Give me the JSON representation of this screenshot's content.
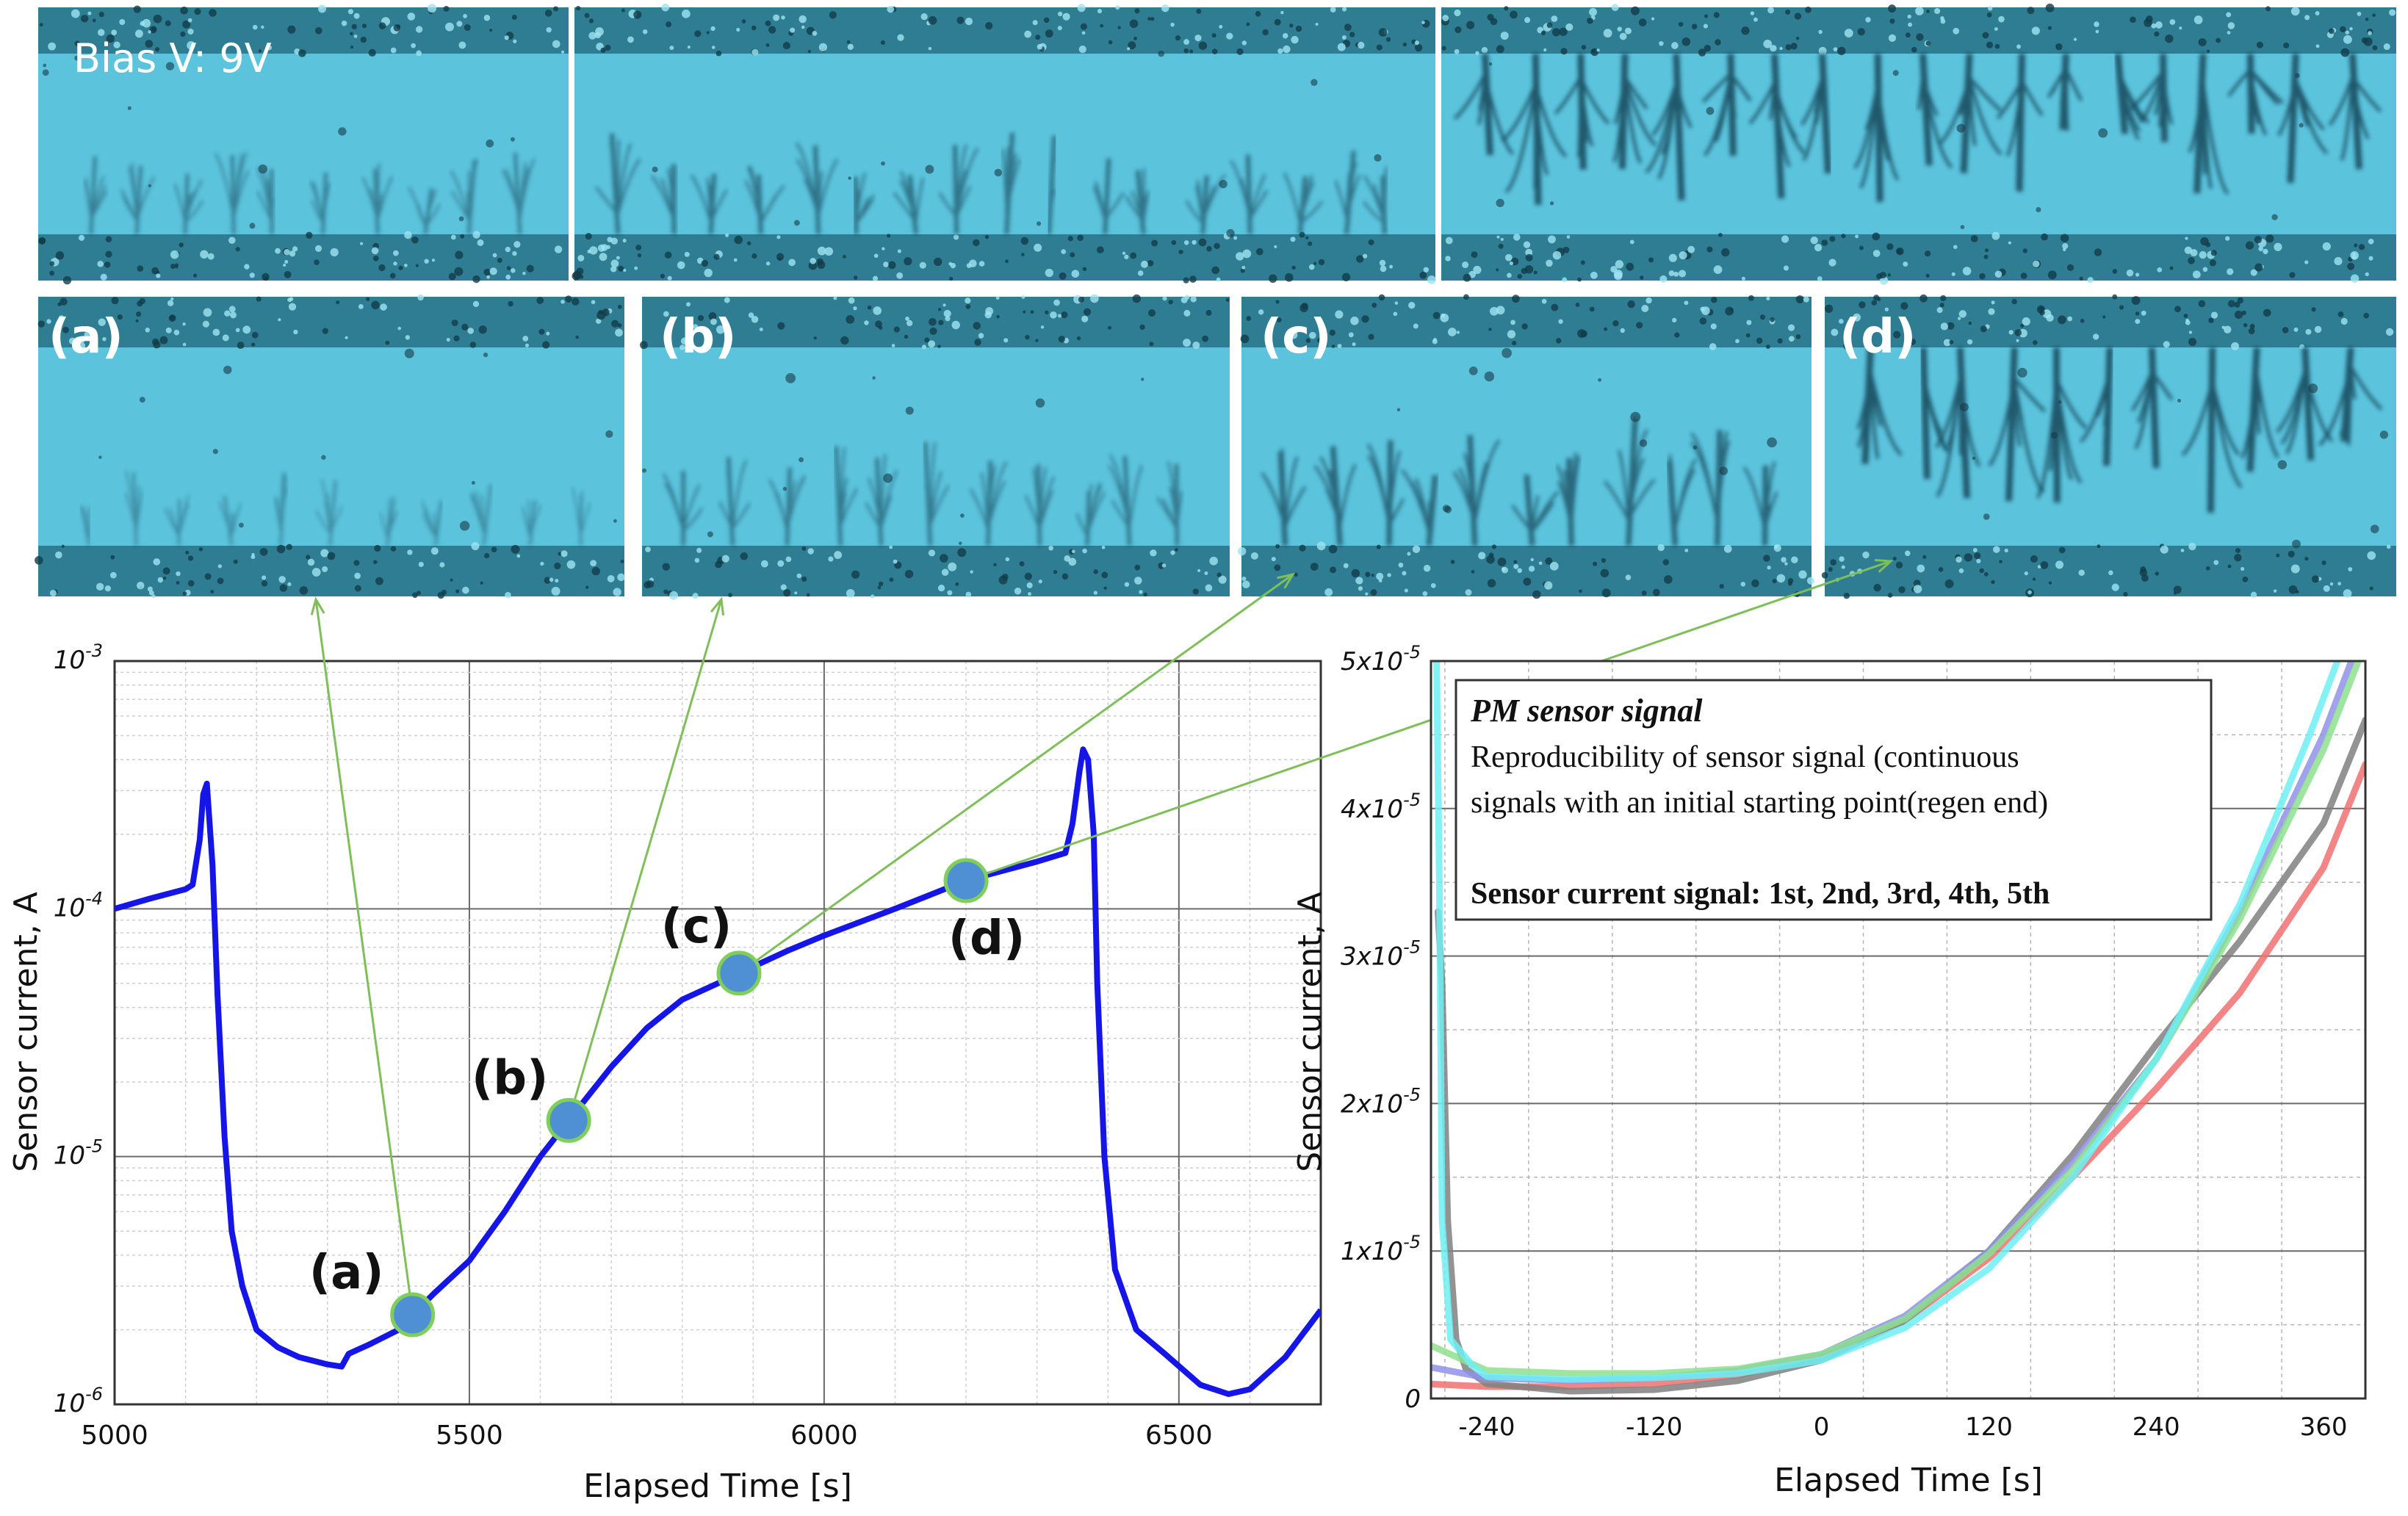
{
  "figure": {
    "bias_label": "Bias V: 9V",
    "panel_labels": [
      "(a)",
      "(b)",
      "(c)",
      "(d)"
    ]
  },
  "colors": {
    "micro_bg": "#5cc3dc",
    "micro_band": "#2f7d93",
    "dendrite": "#14465a",
    "left_line": "#1515e8",
    "marker_fill": "#4f8fd4",
    "marker_stroke": "#7fcf5a",
    "arrow": "#7fbf5a",
    "grid_major": "#6a6a6a",
    "grid_minor": "#cfcfcf"
  },
  "chart_data": [
    {
      "type": "line",
      "xlabel": "Elapsed Time [s]",
      "ylabel": "Sensor current, A",
      "yscale": "log",
      "xlim": [
        5000,
        6700
      ],
      "ylim": [
        1e-06,
        0.001
      ],
      "xticks": [
        5000,
        5500,
        6000,
        6500
      ],
      "xtick_labels": [
        "5000",
        "5500",
        "6000",
        "6500"
      ],
      "ytick_labels": [
        {
          "base": "10",
          "exp": "-6",
          "value": 1e-06
        },
        {
          "base": "10",
          "exp": "-5",
          "value": 1e-05
        },
        {
          "base": "10",
          "exp": "-4",
          "value": 0.0001
        },
        {
          "base": "10",
          "exp": "-3",
          "value": 0.001
        }
      ],
      "series": [
        {
          "name": "sensor current",
          "x": [
            5000,
            5050,
            5100,
            5110,
            5120,
            5125,
            5130,
            5138,
            5145,
            5155,
            5165,
            5180,
            5200,
            5230,
            5260,
            5300,
            5320,
            5330,
            5360,
            5400,
            5420,
            5450,
            5500,
            5550,
            5600,
            5640,
            5700,
            5750,
            5800,
            5850,
            5880,
            5950,
            6000,
            6100,
            6200,
            6300,
            6340,
            6350,
            6360,
            6365,
            6372,
            6380,
            6385,
            6395,
            6410,
            6440,
            6480,
            6530,
            6570,
            6600,
            6650,
            6700
          ],
          "y": [
            0.0001,
            0.00011,
            0.00012,
            0.000125,
            0.00019,
            0.00029,
            0.00032,
            0.00015,
            4.5e-05,
            1.2e-05,
            5e-06,
            3e-06,
            2e-06,
            1.7e-06,
            1.55e-06,
            1.45e-06,
            1.42e-06,
            1.6e-06,
            1.75e-06,
            2e-06,
            2.3e-06,
            2.8e-06,
            3.8e-06,
            6e-06,
            1e-05,
            1.4e-05,
            2.3e-05,
            3.3e-05,
            4.3e-05,
            5e-05,
            5.5e-05,
            6.8e-05,
            7.8e-05,
            0.0001,
            0.00013,
            0.000155,
            0.000168,
            0.00022,
            0.00036,
            0.00044,
            0.0004,
            0.0002,
            5e-05,
            1e-05,
            3.5e-06,
            2e-06,
            1.6e-06,
            1.2e-06,
            1.1e-06,
            1.15e-06,
            1.55e-06,
            2.4e-06
          ]
        }
      ],
      "markers": [
        {
          "label": "(a)",
          "x": 5420,
          "y": 2.3e-06
        },
        {
          "label": "(b)",
          "x": 5640,
          "y": 1.4e-05
        },
        {
          "label": "(c)",
          "x": 5880,
          "y": 5.5e-05
        },
        {
          "label": "(d)",
          "x": 6200,
          "y": 0.00013
        }
      ]
    },
    {
      "type": "line",
      "xlabel": "Elapsed Time [s]",
      "ylabel": "Sensor current, A",
      "xlim": [
        -280,
        390
      ],
      "ylim": [
        0,
        5e-05
      ],
      "xticks": [
        -240,
        -120,
        0,
        120,
        240,
        360
      ],
      "xtick_labels": [
        "-240",
        "-120",
        "0",
        "120",
        "240",
        "360"
      ],
      "yticks": [
        0,
        1e-05,
        2e-05,
        3e-05,
        4e-05,
        5e-05
      ],
      "ytick_labels": [
        {
          "base": "0",
          "exp": "",
          "value": 0
        },
        {
          "base": "1x10",
          "exp": "-5",
          "value": 1e-05
        },
        {
          "base": "2x10",
          "exp": "-5",
          "value": 2e-05
        },
        {
          "base": "3x10",
          "exp": "-5",
          "value": 3e-05
        },
        {
          "base": "4x10",
          "exp": "-5",
          "value": 4e-05
        },
        {
          "base": "5x10",
          "exp": "-5",
          "value": 5e-05
        }
      ],
      "annotation": {
        "title": "PM sensor signal",
        "line1": "Reproducibility of sensor signal (continuous",
        "line2": "signals with an initial starting point(regen end)",
        "line3": "Sensor current signal: 1st, 2nd, 3rd, 4th, 5th"
      },
      "series": [
        {
          "name": "1st",
          "color": "#f07070",
          "x": [
            -285,
            -240,
            -180,
            -120,
            -60,
            0,
            60,
            120,
            180,
            240,
            300,
            360,
            390
          ],
          "y": [
            1e-06,
            8e-07,
            8e-07,
            1e-06,
            1.6e-06,
            2.8e-06,
            5.3e-06,
            9.5e-06,
            1.5e-05,
            2.1e-05,
            2.75e-05,
            3.6e-05,
            4.3e-05
          ]
        },
        {
          "name": "2nd",
          "color": "#808080",
          "x": [
            -275,
            -272,
            -268,
            -262,
            -255,
            -240,
            -180,
            -120,
            -60,
            0,
            60,
            120,
            180,
            240,
            300,
            360,
            390
          ],
          "y": [
            3.3e-05,
            2.8e-05,
            1.2e-05,
            4e-06,
            2e-06,
            1e-06,
            5e-07,
            6e-07,
            1.2e-06,
            2.6e-06,
            5.3e-06,
            1e-05,
            1.65e-05,
            2.4e-05,
            3.1e-05,
            3.9e-05,
            4.6e-05
          ]
        },
        {
          "name": "3rd",
          "color": "#9090ea",
          "x": [
            -285,
            -240,
            -180,
            -120,
            -60,
            0,
            60,
            120,
            180,
            240,
            300,
            360,
            380
          ],
          "y": [
            2.2e-06,
            1.4e-06,
            1.2e-06,
            1.4e-06,
            1.9e-06,
            3e-06,
            5.6e-06,
            1e-05,
            1.6e-05,
            2.3e-05,
            3.3e-05,
            4.5e-05,
            5e-05
          ]
        },
        {
          "name": "4th",
          "color": "#8ee08e",
          "x": [
            -285,
            -240,
            -180,
            -120,
            -60,
            0,
            60,
            120,
            180,
            240,
            300,
            360,
            385
          ],
          "y": [
            3.8e-06,
            1.9e-06,
            1.7e-06,
            1.7e-06,
            2e-06,
            3e-06,
            5.4e-06,
            9.8e-06,
            1.55e-05,
            2.3e-05,
            3.25e-05,
            4.4e-05,
            5e-05
          ]
        },
        {
          "name": "5th",
          "color": "#6eeef2",
          "x": [
            -276,
            -274,
            -272,
            -266,
            -250,
            -240,
            -180,
            -120,
            -60,
            0,
            60,
            120,
            180,
            240,
            300,
            350,
            370
          ],
          "y": [
            5e-05,
            3.5e-05,
            1.2e-05,
            4e-06,
            2.2e-06,
            1.5e-06,
            1.3e-06,
            1.4e-06,
            1.7e-06,
            2.6e-06,
            4.8e-06,
            8.8e-06,
            1.5e-05,
            2.3e-05,
            3.35e-05,
            4.5e-05,
            5e-05
          ]
        }
      ]
    }
  ]
}
